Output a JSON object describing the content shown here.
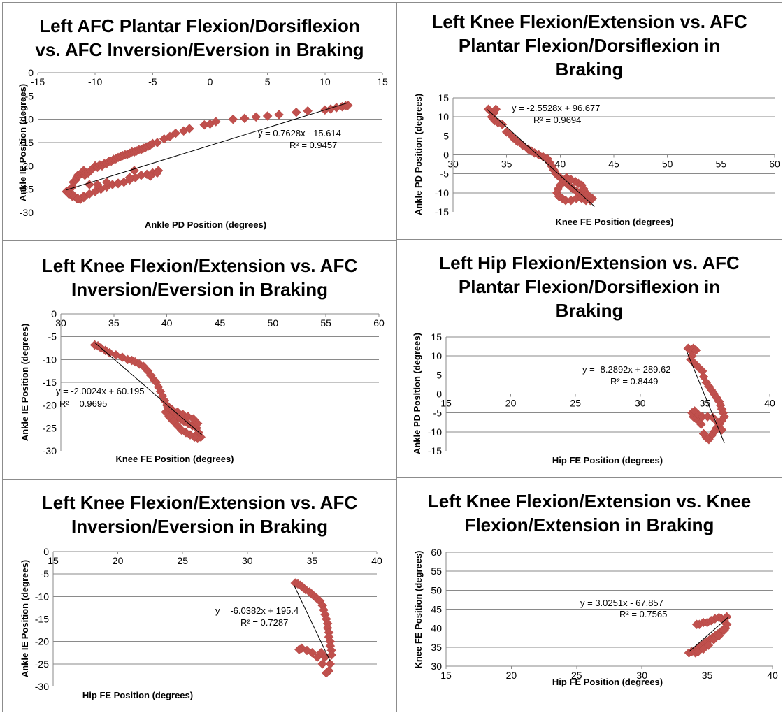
{
  "chart_data": [
    {
      "type": "scatter",
      "title": "Left AFC Plantar Flexion/Dorsiflexion\nvs. AFC Inversion/Eversion in Braking",
      "xlabel": "Ankle PD Position (degrees)",
      "ylabel": "Ankle IE Position (degrees)",
      "xlim": [
        -15,
        15
      ],
      "ylim": [
        -30,
        0
      ],
      "xticks": [
        "-15",
        "-10",
        "-5",
        "0",
        "5",
        "10",
        "15"
      ],
      "yticks": [
        "-30",
        "-25",
        "-20",
        "-15",
        "-10",
        "-5",
        "0"
      ],
      "x_axis_crosses_top": true,
      "trendline": {
        "slope": 0.7628,
        "intercept": -15.614,
        "x_range": [
          -12.5,
          12
        ]
      },
      "equation": "y = 0.7628x - 15.614",
      "r2": "R² = 0.9457",
      "x": [
        -12.5,
        -12.2,
        -12.0,
        -11.9,
        -11.7,
        -11.6,
        -11.5,
        -11.4,
        -11.3,
        -11.2,
        -11.1,
        -11.0,
        -10.9,
        -10.8,
        -10.6,
        -10.4,
        -10.2,
        -10.0,
        -9.8,
        -9.6,
        -9.4,
        -9.2,
        -9.0,
        -8.8,
        -8.6,
        -8.4,
        -8.2,
        -8.0,
        -7.8,
        -7.6,
        -7.4,
        -7.2,
        -7.0,
        -6.8,
        -6.6,
        -6.4,
        -6.2,
        -6.0,
        -5.8,
        -5.6,
        -5.4,
        -5.2,
        -5.0,
        -4.6,
        -4.0,
        -3.5,
        -3.0,
        -2.3,
        -1.8,
        -0.5,
        0.0,
        0.5,
        2.0,
        3.0,
        4.0,
        5.0,
        6.0,
        7.5,
        8.5,
        10.0,
        10.5,
        11.0,
        11.5,
        11.8,
        12.0,
        -11.5,
        -11.0,
        -10.5,
        -10.0,
        -9.5,
        -9.0,
        -8.5,
        -8.0,
        -7.5,
        -7.0,
        -6.5,
        -6.0,
        -5.5,
        -5.0,
        -4.5,
        -12.0,
        -11.6,
        -11.3,
        -11.0,
        -10.5,
        -9.8,
        -9.0,
        -8.0,
        -7.0,
        -6.6,
        -6.0,
        -5.2,
        -4.6,
        -12.3,
        -11.9,
        -11.5
      ],
      "y": [
        -25.5,
        -25.0,
        -24.5,
        -23.5,
        -23.0,
        -22.5,
        -22.0,
        -22.0,
        -21.8,
        -21.5,
        -21.3,
        -21.0,
        -22.0,
        -21.5,
        -21.5,
        -21.0,
        -20.5,
        -20.0,
        -20.3,
        -19.8,
        -20.0,
        -19.5,
        -19.5,
        -19.0,
        -19.0,
        -18.6,
        -18.5,
        -18.2,
        -18.0,
        -17.8,
        -17.6,
        -17.5,
        -17.3,
        -17.0,
        -17.0,
        -16.8,
        -16.5,
        -16.5,
        -16.2,
        -16.0,
        -15.8,
        -15.5,
        -15.2,
        -15.0,
        -14.2,
        -13.7,
        -13.0,
        -12.5,
        -12.0,
        -11.2,
        -11.0,
        -10.5,
        -10.0,
        -9.8,
        -9.5,
        -9.3,
        -9.0,
        -8.5,
        -8.2,
        -8.0,
        -7.8,
        -7.5,
        -7.3,
        -7.1,
        -7.0,
        -27.0,
        -26.5,
        -26.0,
        -25.5,
        -25.0,
        -24.5,
        -24.0,
        -23.8,
        -23.5,
        -23.0,
        -22.5,
        -22.0,
        -21.8,
        -21.5,
        -21.0,
        -26.5,
        -27.0,
        -27.2,
        -26.8,
        -24.0,
        -24.0,
        -23.5,
        -23.7,
        -22.5,
        -21.0,
        -22.0,
        -22.2,
        -21.5,
        -26.0,
        -26.3,
        -27.0
      ],
      "legend": "none",
      "grid": "horizontal"
    },
    {
      "type": "scatter",
      "title": "Left Knee Flexion/Extension vs. AFC\nPlantar Flexion/Dorsiflexion in\nBraking",
      "xlabel": "Knee FE Position (degrees)",
      "ylabel": "Ankle PD Position (degrees)",
      "xlim": [
        30,
        60
      ],
      "ylim": [
        -15,
        15
      ],
      "xticks": [
        "30",
        "35",
        "40",
        "45",
        "50",
        "55",
        "60"
      ],
      "yticks": [
        "-15",
        "-10",
        "-5",
        "0",
        "5",
        "10",
        "15"
      ],
      "trendline": {
        "slope": -2.5528,
        "intercept": 96.677,
        "x_range": [
          33.2,
          43.2
        ]
      },
      "equation": "y = -2.5528x + 96.677",
      "r2": "R² = 0.9694",
      "x": [
        33.3,
        33.5,
        33.8,
        34.0,
        33.6,
        33.9,
        34.2,
        34.6,
        35.0,
        35.3,
        35.6,
        36.0,
        36.5,
        37.0,
        37.3,
        37.6,
        38.0,
        38.4,
        38.8,
        39.0,
        39.2,
        39.4,
        39.6,
        39.8,
        40.0,
        40.2,
        40.4,
        40.6,
        40.8,
        41.0,
        41.2,
        41.5,
        41.8,
        42.0,
        42.3,
        42.6,
        42.8,
        43.0,
        42.7,
        42.4,
        42.2,
        42.0,
        41.7,
        41.4,
        41.0,
        40.6,
        40.3,
        40.0,
        39.8,
        39.7,
        39.9,
        40.2,
        40.5,
        41.0,
        41.5,
        42.0,
        42.4
      ],
      "y": [
        12.0,
        11.5,
        11.0,
        12.0,
        10.0,
        9.0,
        8.5,
        8.0,
        6.0,
        5.5,
        4.5,
        3.5,
        2.5,
        1.5,
        1.0,
        0.5,
        0.0,
        -0.5,
        -1.0,
        -2.0,
        -3.0,
        -4.0,
        -5.0,
        -5.5,
        -6.0,
        -6.5,
        -7.0,
        -7.5,
        -8.0,
        -8.5,
        -9.0,
        -9.5,
        -10.0,
        -10.5,
        -11.0,
        -11.5,
        -12.0,
        -11.5,
        -11.0,
        -10.0,
        -9.0,
        -8.0,
        -7.5,
        -7.0,
        -6.5,
        -6.0,
        -7.0,
        -8.0,
        -9.0,
        -10.0,
        -11.0,
        -11.5,
        -12.0,
        -12.0,
        -11.5,
        -11.5,
        -12.0
      ],
      "legend": "none",
      "grid": "horizontal"
    },
    {
      "type": "scatter",
      "title": "Left Knee Flexion/Extension vs. AFC\nInversion/Eversion in Braking",
      "xlabel": "Knee FE Position (degrees)",
      "ylabel": "Ankle IE Position (degrees)",
      "xlim": [
        30,
        60
      ],
      "ylim": [
        -30,
        0
      ],
      "xticks": [
        "30",
        "35",
        "40",
        "45",
        "50",
        "55",
        "60"
      ],
      "yticks": [
        "-30",
        "-25",
        "-20",
        "-15",
        "-10",
        "-5",
        "0"
      ],
      "x_axis_crosses_top": true,
      "trendline": {
        "slope": -2.0024,
        "intercept": 60.195,
        "x_range": [
          33.2,
          43.3
        ]
      },
      "equation": "y = -2.0024x + 60.195",
      "r2": "R² = 0.9695",
      "x": [
        33.2,
        33.5,
        33.8,
        34.2,
        34.6,
        35.2,
        35.8,
        36.3,
        36.7,
        37.0,
        37.4,
        37.8,
        38.2,
        38.5,
        38.8,
        39.0,
        39.2,
        39.4,
        39.6,
        39.8,
        40.0,
        40.2,
        40.4,
        40.6,
        40.8,
        41.0,
        41.3,
        41.6,
        42.0,
        42.4,
        42.8,
        43.0,
        43.2,
        42.9,
        42.6,
        42.2,
        41.8,
        41.4,
        41.0,
        40.6,
        40.2,
        39.9,
        40.1,
        40.5,
        41.0,
        41.5,
        42.0,
        42.5,
        42.9
      ],
      "y": [
        -6.8,
        -7.0,
        -7.5,
        -8.0,
        -8.5,
        -9.0,
        -9.5,
        -10.0,
        -10.2,
        -10.5,
        -11.0,
        -11.5,
        -12.5,
        -13.5,
        -14.5,
        -15.0,
        -16.0,
        -17.0,
        -18.0,
        -19.0,
        -20.0,
        -20.5,
        -21.0,
        -21.5,
        -22.0,
        -22.5,
        -23.0,
        -23.5,
        -24.0,
        -24.5,
        -25.0,
        -26.0,
        -27.0,
        -27.3,
        -27.0,
        -26.5,
        -26.0,
        -25.5,
        -24.5,
        -23.5,
        -22.5,
        -21.5,
        -20.5,
        -21.0,
        -21.5,
        -22.0,
        -22.5,
        -23.0,
        -24.0
      ],
      "legend": "none",
      "grid": "horizontal"
    },
    {
      "type": "scatter",
      "title": "Left Hip Flexion/Extension vs. AFC\nPlantar Flexion/Dorsiflexion in\nBraking",
      "xlabel": "Hip FE Position (degrees)",
      "ylabel": "Ankle PD Position (degrees)",
      "xlim": [
        15,
        40
      ],
      "ylim": [
        -15,
        15
      ],
      "xticks": [
        "15",
        "20",
        "25",
        "30",
        "35",
        "40"
      ],
      "yticks": [
        "-15",
        "-10",
        "-5",
        "0",
        "5",
        "10",
        "15"
      ],
      "trendline": {
        "slope": -8.2892,
        "intercept": 289.62,
        "x_range": [
          33.6,
          36.5
        ]
      },
      "equation": "y = -8.2892x + 289.62",
      "r2": "R² = 0.8449",
      "x": [
        33.7,
        33.9,
        34.1,
        34.3,
        34.0,
        33.9,
        34.2,
        34.5,
        34.8,
        34.9,
        35.1,
        35.3,
        35.5,
        35.7,
        35.9,
        36.1,
        36.2,
        36.3,
        36.4,
        36.5,
        36.3,
        36.1,
        35.9,
        35.7,
        35.5,
        35.3,
        35.1,
        34.9,
        34.7,
        34.5,
        34.3,
        34.1,
        34.0,
        34.2,
        34.5,
        34.8,
        35.2,
        35.6,
        36.0,
        36.3
      ],
      "y": [
        12.0,
        11.5,
        12.0,
        11.5,
        10.0,
        9.0,
        8.0,
        7.0,
        6.0,
        4.5,
        3.0,
        2.0,
        1.0,
        0.0,
        -1.0,
        -2.0,
        -3.0,
        -4.0,
        -5.0,
        -6.0,
        -7.0,
        -8.0,
        -9.0,
        -10.0,
        -11.0,
        -12.0,
        -11.5,
        -10.5,
        -8.0,
        -7.0,
        -6.5,
        -6.0,
        -5.0,
        -4.5,
        -5.5,
        -6.0,
        -6.0,
        -6.2,
        -7.5,
        -9.5
      ],
      "legend": "none",
      "grid": "horizontal"
    },
    {
      "type": "scatter",
      "title": "Left Knee Flexion/Extension vs. AFC\nInversion/Eversion in Braking",
      "xlabel": "Hip FE Position (degrees)",
      "ylabel": "Ankle IE Position (degrees)",
      "xlim": [
        15,
        40
      ],
      "ylim": [
        -30,
        0
      ],
      "xticks": [
        "15",
        "20",
        "25",
        "30",
        "35",
        "40"
      ],
      "yticks": [
        "-30",
        "-25",
        "-20",
        "-15",
        "-10",
        "-5",
        "0"
      ],
      "x_axis_crosses_top": true,
      "trendline": {
        "slope": -6.0382,
        "intercept": 195.4,
        "x_range": [
          33.6,
          36.4
        ]
      },
      "equation": "y = -6.0382x + 195.4",
      "r2": "R² = 0.7287",
      "x": [
        33.7,
        33.9,
        34.1,
        34.3,
        34.5,
        34.8,
        35.0,
        35.2,
        35.4,
        35.6,
        35.8,
        35.9,
        36.0,
        36.1,
        36.2,
        36.2,
        36.3,
        36.3,
        36.4,
        36.4,
        36.5,
        36.5,
        36.4,
        36.3,
        36.1,
        35.8,
        35.4,
        35.0,
        34.6,
        34.2,
        34.0,
        35.7,
        36.0
      ],
      "y": [
        -7.0,
        -7.2,
        -7.5,
        -8.0,
        -8.5,
        -9.0,
        -9.5,
        -10.0,
        -10.5,
        -11.0,
        -12.0,
        -13.0,
        -14.0,
        -15.0,
        -16.0,
        -17.0,
        -18.0,
        -19.0,
        -20.0,
        -21.0,
        -22.0,
        -23.0,
        -25.0,
        -26.5,
        -27.0,
        -25.0,
        -23.5,
        -22.5,
        -22.0,
        -21.5,
        -21.8,
        -22.5,
        -23.5
      ],
      "legend": "none",
      "grid": "horizontal"
    },
    {
      "type": "scatter",
      "title": "Left Knee Flexion/Extension vs. Knee\nFlexion/Extension in Braking",
      "xlabel": "Hip FE Position (degrees)",
      "ylabel": "Knee FE Position (degrees)",
      "xlim": [
        15,
        40
      ],
      "ylim": [
        30,
        60
      ],
      "xticks": [
        "15",
        "20",
        "25",
        "30",
        "35",
        "40"
      ],
      "yticks": [
        "30",
        "35",
        "40",
        "45",
        "50",
        "55",
        "60"
      ],
      "trendline": {
        "slope": 3.0251,
        "intercept": -67.857,
        "x_range": [
          33.6,
          36.6
        ]
      },
      "equation": "y = 3.0251x - 67.857",
      "r2": "R² = 0.7565",
      "x": [
        33.6,
        33.8,
        34.0,
        34.2,
        34.4,
        34.6,
        34.8,
        35.0,
        35.2,
        35.4,
        35.6,
        35.8,
        36.0,
        36.2,
        36.4,
        36.5,
        36.3,
        36.1,
        35.9,
        35.6,
        35.3,
        35.0,
        34.7,
        34.4,
        34.2,
        34.1,
        34.3,
        34.7,
        35.1,
        35.5,
        35.9,
        36.3,
        36.5
      ],
      "y": [
        33.5,
        33.8,
        34.0,
        34.5,
        35.0,
        35.5,
        36.0,
        36.5,
        37.0,
        37.5,
        38.0,
        38.5,
        39.0,
        39.5,
        40.0,
        41.0,
        42.0,
        42.5,
        42.8,
        42.5,
        42.0,
        41.5,
        41.5,
        41.0,
        41.0,
        33.5,
        33.8,
        34.5,
        35.5,
        37.0,
        38.0,
        39.5,
        43.0
      ],
      "legend": "none",
      "grid": "horizontal"
    }
  ]
}
